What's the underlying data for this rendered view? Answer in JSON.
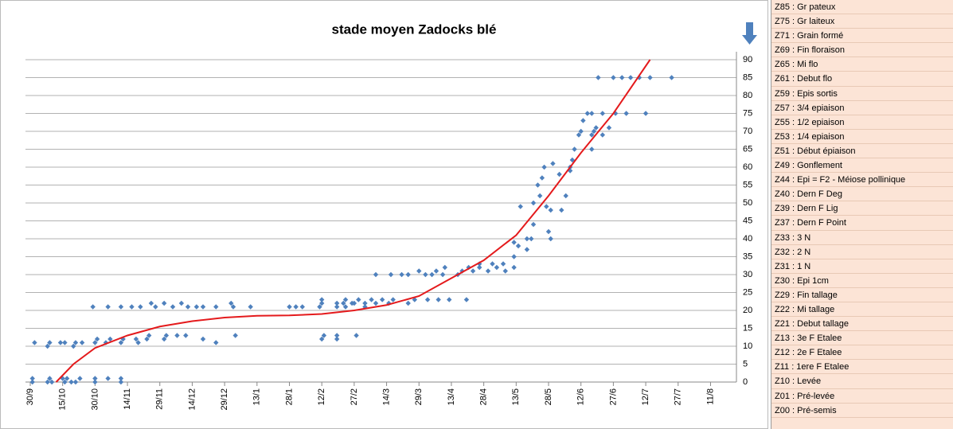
{
  "chart_data": {
    "type": "scatter",
    "title": "stade moyen Zadocks blé",
    "color": "#4f81bd",
    "x": [
      1,
      1,
      8,
      9,
      10,
      15,
      16,
      17,
      19,
      21,
      23,
      30,
      30,
      36,
      42,
      42,
      2,
      8,
      9,
      14,
      16,
      20,
      21,
      24,
      30,
      31,
      35,
      37,
      42,
      43,
      49,
      50,
      54,
      55,
      62,
      63,
      68,
      72,
      80,
      86,
      95,
      29,
      36,
      42,
      47,
      51,
      56,
      58,
      62,
      66,
      70,
      73,
      77,
      80,
      86,
      93,
      94,
      102,
      120,
      123,
      126,
      134,
      135,
      135,
      135,
      136,
      142,
      142,
      142,
      142,
      145,
      146,
      146,
      149,
      151,
      150,
      152,
      155,
      155,
      158,
      160,
      160,
      163,
      166,
      167,
      168,
      172,
      175,
      175,
      178,
      180,
      183,
      184,
      186,
      188,
      189,
      191,
      192,
      194,
      198,
      200,
      202,
      203,
      205,
      208,
      208,
      212,
      214,
      216,
      219,
      220,
      224,
      224,
      224,
      226,
      227,
      230,
      230,
      232,
      233,
      233,
      235,
      236,
      237,
      238,
      239,
      240,
      241,
      241,
      242,
      245,
      246,
      248,
      250,
      250,
      251,
      252,
      254,
      255,
      256,
      258,
      260,
      260,
      260,
      261,
      262,
      263,
      265,
      265,
      268,
      270,
      271,
      274,
      276,
      278,
      282,
      285,
      287,
      297
    ],
    "values": [
      0,
      1,
      0,
      1,
      0,
      1,
      0,
      1,
      0,
      0,
      1,
      0,
      1,
      1,
      0,
      1,
      11,
      10,
      11,
      11,
      11,
      10,
      11,
      11,
      11,
      12,
      11,
      12,
      11,
      12,
      12,
      11,
      12,
      13,
      12,
      13,
      13,
      13,
      12,
      11,
      13,
      21,
      21,
      21,
      21,
      21,
      22,
      21,
      22,
      21,
      22,
      21,
      21,
      21,
      21,
      22,
      21,
      21,
      21,
      21,
      21,
      21,
      22,
      23,
      12,
      13,
      21,
      22,
      12,
      13,
      22,
      23,
      21,
      22,
      13,
      22,
      23,
      21,
      22,
      23,
      30,
      22,
      23,
      22,
      30,
      23,
      30,
      22,
      30,
      23,
      31,
      30,
      23,
      30,
      31,
      23,
      30,
      32,
      23,
      30,
      31,
      23,
      32,
      31,
      32,
      33,
      31,
      33,
      32,
      33,
      31,
      32,
      35,
      39,
      38,
      49,
      37,
      40,
      40,
      44,
      50,
      55,
      52,
      57,
      60,
      49,
      42,
      40,
      48,
      61,
      58,
      48,
      52,
      60,
      59,
      62,
      65,
      69,
      70,
      73,
      75,
      65,
      69,
      75,
      70,
      71,
      85,
      75,
      69,
      71,
      85,
      75,
      85,
      75,
      85,
      85,
      75,
      85,
      85
    ],
    "trend": {
      "color": "#e41a1c",
      "x": [
        12,
        20,
        30,
        45,
        60,
        75,
        90,
        105,
        120,
        135,
        150,
        165,
        180,
        195,
        210,
        225,
        240,
        255,
        270,
        287
      ],
      "values": [
        0,
        5,
        9.5,
        13,
        15.5,
        17,
        18,
        18.5,
        18.6,
        19,
        20,
        21.5,
        24,
        29,
        34,
        41,
        52,
        64,
        75,
        90
      ]
    },
    "xlim": [
      0,
      327
    ],
    "xticks": [
      {
        "value": 0,
        "label": "30/9"
      },
      {
        "value": 15,
        "label": "15/10"
      },
      {
        "value": 30,
        "label": "30/10"
      },
      {
        "value": 45,
        "label": "14/11"
      },
      {
        "value": 60,
        "label": "29/11"
      },
      {
        "value": 75,
        "label": "14/12"
      },
      {
        "value": 90,
        "label": "29/12"
      },
      {
        "value": 105,
        "label": "13/1"
      },
      {
        "value": 120,
        "label": "28/1"
      },
      {
        "value": 135,
        "label": "12/2"
      },
      {
        "value": 150,
        "label": "27/2"
      },
      {
        "value": 165,
        "label": "14/3"
      },
      {
        "value": 180,
        "label": "29/3"
      },
      {
        "value": 195,
        "label": "13/4"
      },
      {
        "value": 210,
        "label": "28/4"
      },
      {
        "value": 225,
        "label": "13/5"
      },
      {
        "value": 240,
        "label": "28/5"
      },
      {
        "value": 255,
        "label": "12/6"
      },
      {
        "value": 270,
        "label": "27/6"
      },
      {
        "value": 285,
        "label": "12/7"
      },
      {
        "value": 300,
        "label": "27/7"
      },
      {
        "value": 315,
        "label": "11/8"
      }
    ],
    "ylim": [
      0,
      90
    ],
    "yticks": [
      0,
      5,
      10,
      15,
      20,
      25,
      30,
      35,
      40,
      45,
      50,
      55,
      60,
      65,
      70,
      75,
      80,
      85,
      90
    ],
    "grid": true
  },
  "stages": [
    "Z85 : Gr pateux",
    "Z75 : Gr laiteux",
    "Z71 : Grain formé",
    "Z69 : Fin floraison",
    "Z65 : Mi flo",
    "Z61 : Debut flo",
    "Z59 : Epis sortis",
    "Z57 : 3/4 epiaison",
    "Z55 : 1/2 epiaison",
    "Z53 : 1/4 epiaison",
    "Z51 : Début épiaison",
    "Z49 : Gonflement",
    "Z44 : Epi = F2 - Méiose pollinique",
    "Z40 : Dern F Deg",
    "Z39 : Dern F Lig",
    "Z37 : Dern F Point",
    "Z33 : 3 N",
    "Z32 : 2 N",
    "Z31 : 1 N",
    "Z30 : Epi 1cm",
    "Z29 : Fin tallage",
    "Z22 : Mi tallage",
    "Z21 : Debut tallage",
    "Z13 : 3e F Etalee",
    "Z12 : 2e F Etalee",
    "Z11 : 1ere F Etalee",
    "Z10 : Levée",
    "Z01 : Pré-levée",
    "Z00 : Pré-semis"
  ]
}
